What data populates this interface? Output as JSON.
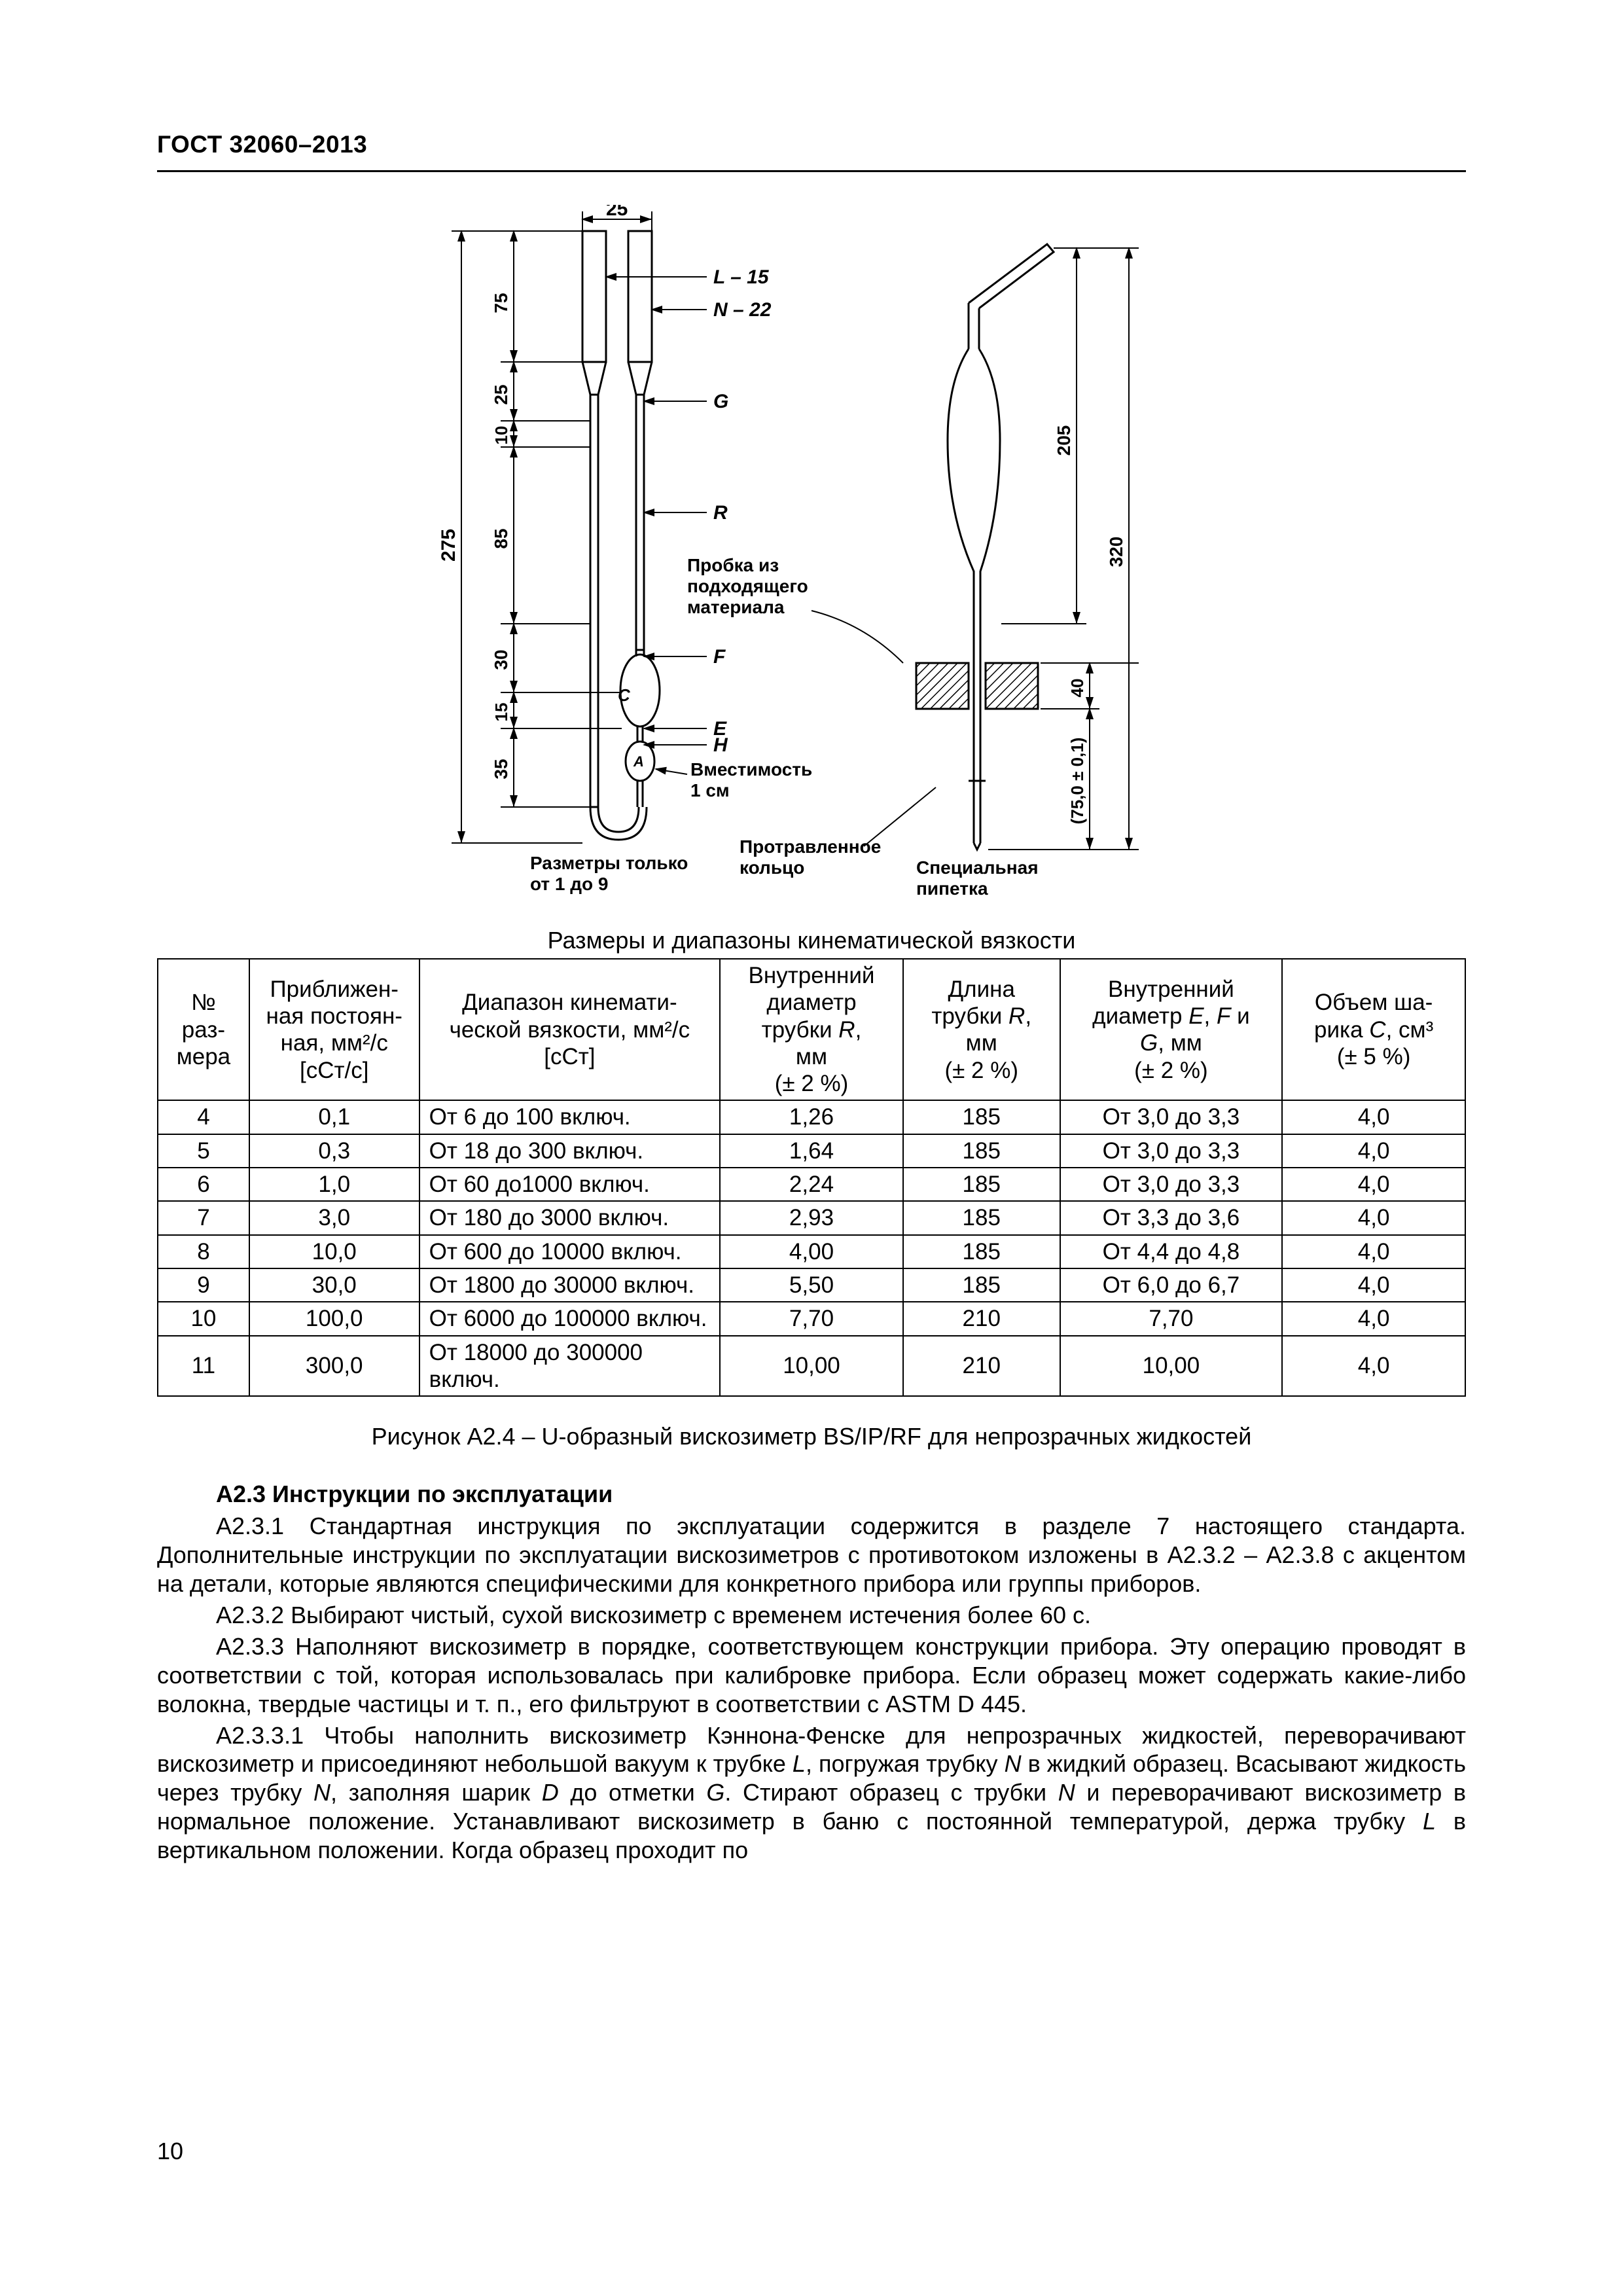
{
  "header": {
    "standard_code": "ГОСТ 32060–2013"
  },
  "page_number": "10",
  "figure": {
    "top_dim": "25",
    "left_total": "275",
    "left_segments": [
      "75",
      "25",
      "10",
      "85",
      "30",
      "15",
      "35"
    ],
    "L_label": "L – 15",
    "N_label": "N – 22",
    "G_label": "G",
    "R_label": "R",
    "F_label": "F",
    "C_label": "C",
    "E_label": "E",
    "H_label": "H",
    "A_label": "А",
    "plug_line1": "Пробка из",
    "plug_line2": "подходящего",
    "plug_line3": "материала",
    "capacity_line1": "Вместимость",
    "capacity_line2": "1 см",
    "sizes_note_line1": "Разметры только",
    "sizes_note_line2": "от 1 до 9",
    "etched_line1": "Протравленное",
    "etched_line2": "кольцо",
    "pipette_line1": "Специальная",
    "pipette_line2": "пипетка",
    "right_total": "320",
    "right_upper": "205",
    "right_lower": "40",
    "right_bottom": "(75,0 ± 0,1)"
  },
  "table": {
    "caption": "Размеры и диапазоны кинематической вязкости",
    "headers": {
      "c1_l1": "№",
      "c1_l2": "раз-",
      "c1_l3": "мера",
      "c2_l1": "Приближен-",
      "c2_l2": "ная постоян-",
      "c2_l3": "ная, мм²/с",
      "c2_l4": "[сСт/с]",
      "c3_l1": "Диапазон кинемати-",
      "c3_l2": "ческой вязкости, мм²/с",
      "c3_l3": "[сСт]",
      "c4_l1": "Внутренний",
      "c4_l2": "диаметр",
      "c4_l3": "трубки R,",
      "c4_l4": "мм",
      "c4_l5": "(± 2 %)",
      "c5_l1": "Длина",
      "c5_l2": "трубки R,",
      "c5_l3": "мм",
      "c5_l4": "(± 2 %)",
      "c6_l1": "Внутренний",
      "c6_l2": "диаметр E, F и",
      "c6_l3": "G, мм",
      "c6_l4": "(± 2 %)",
      "c7_l1": "Объем ша-",
      "c7_l2": "рика C, см³",
      "c7_l3": "(± 5 %)"
    },
    "rows": [
      {
        "n": "4",
        "k": "0,1",
        "range": "От 6 до 100 включ.",
        "dR": "1,26",
        "lR": "185",
        "dEFG": "От 3,0 до 3,3",
        "v": "4,0"
      },
      {
        "n": "5",
        "k": "0,3",
        "range": "От 18 до 300 включ.",
        "dR": "1,64",
        "lR": "185",
        "dEFG": "От 3,0 до 3,3",
        "v": "4,0"
      },
      {
        "n": "6",
        "k": "1,0",
        "range": "От 60 до1000 включ.",
        "dR": "2,24",
        "lR": "185",
        "dEFG": "От 3,0 до 3,3",
        "v": "4,0"
      },
      {
        "n": "7",
        "k": "3,0",
        "range": "От 180 до 3000 включ.",
        "dR": "2,93",
        "lR": "185",
        "dEFG": "От 3,3 до 3,6",
        "v": "4,0"
      },
      {
        "n": "8",
        "k": "10,0",
        "range": "От 600 до 10000 включ.",
        "dR": "4,00",
        "lR": "185",
        "dEFG": "От 4,4 до 4,8",
        "v": "4,0"
      },
      {
        "n": "9",
        "k": "30,0",
        "range": "От 1800 до 30000 включ.",
        "dR": "5,50",
        "lR": "185",
        "dEFG": "От 6,0 до 6,7",
        "v": "4,0"
      },
      {
        "n": "10",
        "k": "100,0",
        "range": "От 6000 до 100000 включ.",
        "dR": "7,70",
        "lR": "210",
        "dEFG": "7,70",
        "v": "4,0"
      },
      {
        "n": "11",
        "k": "300,0",
        "range": "От 18000 до 300000 включ.",
        "dR": "10,00",
        "lR": "210",
        "dEFG": "10,00",
        "v": "4,0"
      }
    ],
    "italic_cols": {
      "c4_l3": "R",
      "c5_l2": "R",
      "c6_l2": "E, F",
      "c6_l2b": "G",
      "c7_l2": "C"
    }
  },
  "fig_caption": "Рисунок А2.4 – U-образный вискозиметр BS/IP/RF для непрозрачных жидкостей",
  "section": {
    "title": "А2.3 Инструкции по эксплуатации",
    "p1": "А2.3.1 Стандартная инструкция по эксплуатации содержится в разделе 7 настоящего стандарта. Дополнительные инструкции по эксплуатации вискозиметров с противотоком изложены в А2.3.2 – А2.3.8 с акцентом на детали, которые являются специфическими для конкретного прибора или группы приборов.",
    "p2": "А2.3.2 Выбирают чистый, сухой вискозиметр с временем истечения более 60 с.",
    "p3a": "А2.3.3 Наполняют вискозиметр в порядке, соответствующем конструкции прибора. Эту операцию проводят в соответствии с той, которая использовалась при калибровке прибора. Если образец может содержать какие-либо волокна, твердые частицы и т. п., его фильтруют в соответствии с ASTM D 445.",
    "p4a": "А2.3.3.1 Чтобы наполнить вискозиметр Кэннона-Фенске для непрозрачных жидкостей, переворачивают вискозиметр и присоединяют небольшой вакуум к трубке ",
    "p4L": "L",
    "p4b": ", погружая трубку ",
    "p4N": "N",
    "p4c": " в жидкий образец. Всасывают жидкость через трубку ",
    "p4N2": "N",
    "p4d": ", заполняя шарик ",
    "p4D": "D",
    "p4e": " до отметки ",
    "p4G": "G",
    "p4f": ". Стирают образец с трубки ",
    "p4N3": "N",
    "p4g": " и переворачивают вискозиметр в нормальное положение. Устанавливают вискозиметр в баню с постоянной температурой, держа трубку ",
    "p4L2": "L",
    "p4h": " в вертикальном положении. Когда образец проходит по"
  }
}
